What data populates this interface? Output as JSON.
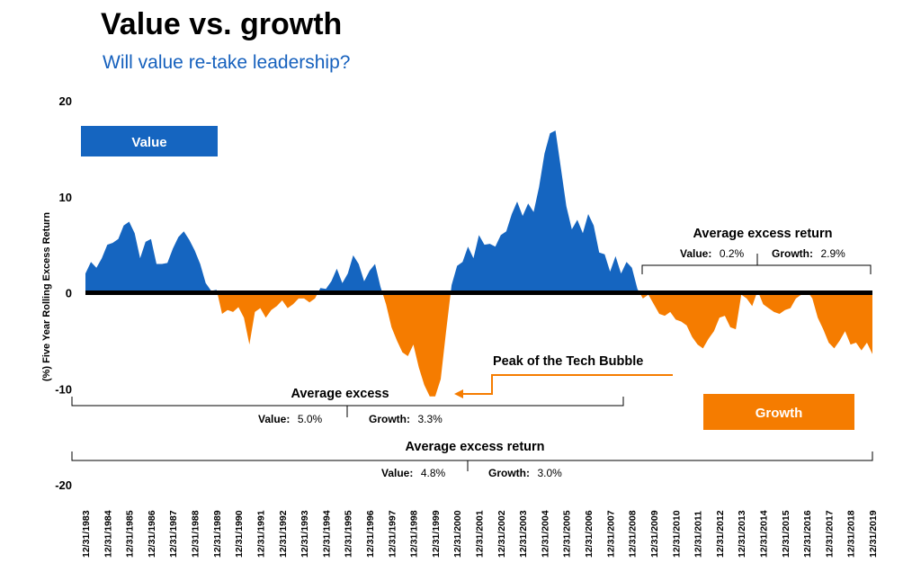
{
  "title": "Value vs. growth",
  "subtitle": "Will value re-take leadership?",
  "colors": {
    "value": "#1565c0",
    "growth": "#f57c00",
    "subtitle": "#1560bd",
    "zero_line": "#000000"
  },
  "chart_data": {
    "type": "area",
    "ylabel": "(%) Five Year Rolling Excess Return",
    "ylim": [
      -20,
      20
    ],
    "yticks": [
      20,
      10,
      0,
      -10,
      -20
    ],
    "x_categories": [
      "12/31/1983",
      "12/31/1984",
      "12/31/1985",
      "12/31/1986",
      "12/31/1987",
      "12/31/1988",
      "12/31/1989",
      "12/31/1990",
      "12/31/1991",
      "12/31/1992",
      "12/31/1993",
      "12/31/1994",
      "12/31/1995",
      "12/31/1996",
      "12/31/1997",
      "12/31/1998",
      "12/31/1999",
      "12/31/2000",
      "12/31/2001",
      "12/31/2002",
      "12/31/2003",
      "12/31/2004",
      "12/31/2005",
      "12/31/2006",
      "12/31/2007",
      "12/31/2008",
      "12/31/2009",
      "12/31/2010",
      "12/31/2011",
      "12/31/2012",
      "12/31/2013",
      "12/31/2014",
      "12/31/2015",
      "12/31/2016",
      "12/31/2017",
      "12/31/2018",
      "12/31/2019"
    ],
    "series": [
      {
        "legend": "Value",
        "legend_color": "#1565c0"
      },
      {
        "legend": "Growth",
        "legend_color": "#f57c00"
      }
    ],
    "data": [
      [
        1983.0,
        2.0
      ],
      [
        1983.25,
        3.2
      ],
      [
        1983.5,
        2.6
      ],
      [
        1983.75,
        3.6
      ],
      [
        1984.0,
        5.0
      ],
      [
        1984.25,
        5.2
      ],
      [
        1984.5,
        5.6
      ],
      [
        1984.75,
        7.0
      ],
      [
        1985.0,
        7.4
      ],
      [
        1985.25,
        6.2
      ],
      [
        1985.5,
        3.6
      ],
      [
        1985.75,
        5.3
      ],
      [
        1986.0,
        5.6
      ],
      [
        1986.25,
        3.0
      ],
      [
        1986.5,
        3.0
      ],
      [
        1986.75,
        3.1
      ],
      [
        1987.0,
        4.6
      ],
      [
        1987.25,
        5.8
      ],
      [
        1987.5,
        6.4
      ],
      [
        1987.75,
        5.5
      ],
      [
        1988.0,
        4.4
      ],
      [
        1988.25,
        3.0
      ],
      [
        1988.5,
        1.0
      ],
      [
        1988.75,
        0.2
      ],
      [
        1989.0,
        0.3
      ],
      [
        1989.25,
        -2.2
      ],
      [
        1989.5,
        -1.8
      ],
      [
        1989.75,
        -2.0
      ],
      [
        1990.0,
        -1.5
      ],
      [
        1990.25,
        -2.6
      ],
      [
        1990.5,
        -5.4
      ],
      [
        1990.75,
        -2.0
      ],
      [
        1991.0,
        -1.6
      ],
      [
        1991.25,
        -2.6
      ],
      [
        1991.5,
        -1.8
      ],
      [
        1991.75,
        -1.4
      ],
      [
        1992.0,
        -0.8
      ],
      [
        1992.25,
        -1.6
      ],
      [
        1992.5,
        -1.2
      ],
      [
        1992.75,
        -0.6
      ],
      [
        1993.0,
        -0.6
      ],
      [
        1993.25,
        -1.0
      ],
      [
        1993.5,
        -0.6
      ],
      [
        1993.75,
        0.5
      ],
      [
        1994.0,
        0.4
      ],
      [
        1994.25,
        1.2
      ],
      [
        1994.5,
        2.5
      ],
      [
        1994.75,
        1.0
      ],
      [
        1995.0,
        2.0
      ],
      [
        1995.25,
        3.9
      ],
      [
        1995.5,
        3.0
      ],
      [
        1995.75,
        1.2
      ],
      [
        1996.0,
        2.3
      ],
      [
        1996.25,
        3.0
      ],
      [
        1996.5,
        0.6
      ],
      [
        1996.75,
        -1.2
      ],
      [
        1997.0,
        -3.6
      ],
      [
        1997.25,
        -5.0
      ],
      [
        1997.5,
        -6.2
      ],
      [
        1997.75,
        -6.6
      ],
      [
        1998.0,
        -5.4
      ],
      [
        1998.25,
        -7.8
      ],
      [
        1998.5,
        -9.6
      ],
      [
        1998.75,
        -10.8
      ],
      [
        1999.0,
        -10.8
      ],
      [
        1999.25,
        -9.0
      ],
      [
        1999.5,
        -4.0
      ],
      [
        1999.75,
        0.8
      ],
      [
        2000.0,
        2.8
      ],
      [
        2000.25,
        3.2
      ],
      [
        2000.5,
        4.8
      ],
      [
        2000.75,
        3.6
      ],
      [
        2001.0,
        6.0
      ],
      [
        2001.25,
        5.0
      ],
      [
        2001.5,
        5.1
      ],
      [
        2001.75,
        4.8
      ],
      [
        2002.0,
        6.0
      ],
      [
        2002.25,
        6.4
      ],
      [
        2002.5,
        8.2
      ],
      [
        2002.75,
        9.5
      ],
      [
        2003.0,
        8.0
      ],
      [
        2003.25,
        9.3
      ],
      [
        2003.5,
        8.4
      ],
      [
        2003.75,
        11.0
      ],
      [
        2004.0,
        14.5
      ],
      [
        2004.25,
        16.6
      ],
      [
        2004.5,
        16.9
      ],
      [
        2004.75,
        13.0
      ],
      [
        2005.0,
        9.0
      ],
      [
        2005.25,
        6.6
      ],
      [
        2005.5,
        7.6
      ],
      [
        2005.75,
        6.2
      ],
      [
        2006.0,
        8.2
      ],
      [
        2006.25,
        7.0
      ],
      [
        2006.5,
        4.2
      ],
      [
        2006.75,
        4.0
      ],
      [
        2007.0,
        2.2
      ],
      [
        2007.25,
        3.8
      ],
      [
        2007.5,
        2.0
      ],
      [
        2007.75,
        3.2
      ],
      [
        2008.0,
        2.6
      ],
      [
        2008.25,
        0.4
      ],
      [
        2008.5,
        -0.6
      ],
      [
        2008.75,
        -0.2
      ],
      [
        2009.0,
        -1.2
      ],
      [
        2009.25,
        -2.2
      ],
      [
        2009.5,
        -2.4
      ],
      [
        2009.75,
        -2.0
      ],
      [
        2010.0,
        -2.8
      ],
      [
        2010.25,
        -3.0
      ],
      [
        2010.5,
        -3.4
      ],
      [
        2010.75,
        -4.6
      ],
      [
        2011.0,
        -5.4
      ],
      [
        2011.25,
        -5.8
      ],
      [
        2011.5,
        -4.8
      ],
      [
        2011.75,
        -4.0
      ],
      [
        2012.0,
        -2.6
      ],
      [
        2012.25,
        -2.4
      ],
      [
        2012.5,
        -3.6
      ],
      [
        2012.75,
        -3.8
      ],
      [
        2013.0,
        -0.2
      ],
      [
        2013.25,
        -0.6
      ],
      [
        2013.5,
        -1.4
      ],
      [
        2013.75,
        0.2
      ],
      [
        2014.0,
        -1.2
      ],
      [
        2014.25,
        -1.6
      ],
      [
        2014.5,
        -2.0
      ],
      [
        2014.75,
        -2.2
      ],
      [
        2015.0,
        -1.8
      ],
      [
        2015.25,
        -1.6
      ],
      [
        2015.5,
        -0.6
      ],
      [
        2015.75,
        -0.2
      ],
      [
        2016.0,
        0.2
      ],
      [
        2016.25,
        -0.6
      ],
      [
        2016.5,
        -2.6
      ],
      [
        2016.75,
        -3.8
      ],
      [
        2017.0,
        -5.2
      ],
      [
        2017.25,
        -5.8
      ],
      [
        2017.5,
        -5.0
      ],
      [
        2017.75,
        -4.0
      ],
      [
        2018.0,
        -5.4
      ],
      [
        2018.25,
        -5.2
      ],
      [
        2018.5,
        -6.0
      ],
      [
        2018.75,
        -5.2
      ],
      [
        2019.0,
        -6.4
      ]
    ],
    "annotations": {
      "box_value": "Value",
      "box_growth": "Growth",
      "tech_bubble": "Peak of the Tech Bubble",
      "period1": {
        "title": "Average excess",
        "value_label": "Value:",
        "value": "5.0%",
        "growth_label": "Growth:",
        "growth": "3.3%"
      },
      "period2": {
        "title": "Average excess return",
        "value_label": "Value:",
        "value": "0.2%",
        "growth_label": "Growth:",
        "growth": "2.9%"
      },
      "overall": {
        "title": "Average excess return",
        "value_label": "Value:",
        "value": "4.8%",
        "growth_label": "Growth:",
        "growth": "3.0%"
      }
    }
  }
}
